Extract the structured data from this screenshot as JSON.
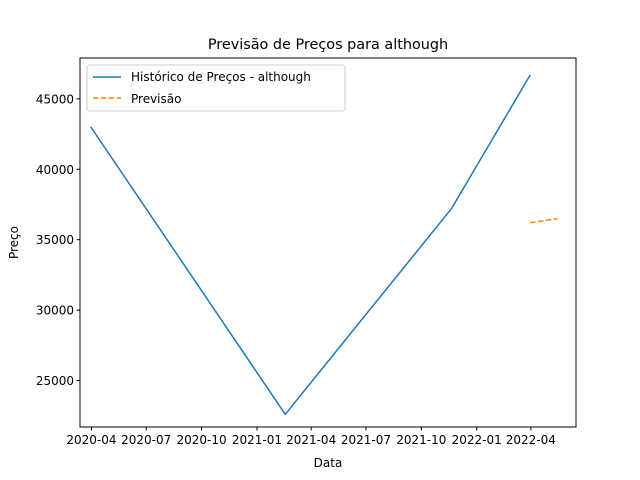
{
  "chart_data": {
    "type": "line",
    "title": "Previsão de Preços para although",
    "xlabel": "Data",
    "ylabel": "Preço",
    "x_ticks": [
      "2020-04",
      "2020-07",
      "2020-10",
      "2021-01",
      "2021-04",
      "2021-07",
      "2021-10",
      "2022-01",
      "2022-04"
    ],
    "y_ticks": [
      25000,
      30000,
      35000,
      40000,
      45000
    ],
    "xlim": [
      "2020-03-13",
      "2022-06-15"
    ],
    "ylim": [
      21700,
      47900
    ],
    "grid": false,
    "legend_position": "upper left",
    "series": [
      {
        "name": "Histórico de Preços - although",
        "color": "#1f77b4",
        "style": "solid",
        "x": [
          "2020-03-31",
          "2021-02-17",
          "2021-11-20",
          "2022-03-31"
        ],
        "y": [
          43000,
          22600,
          37200,
          46700
        ]
      },
      {
        "name": "Previsão",
        "color": "#ff7f0e",
        "style": "dashed",
        "x": [
          "2022-03-31",
          "2022-05-15"
        ],
        "y": [
          36200,
          36500
        ]
      }
    ]
  }
}
